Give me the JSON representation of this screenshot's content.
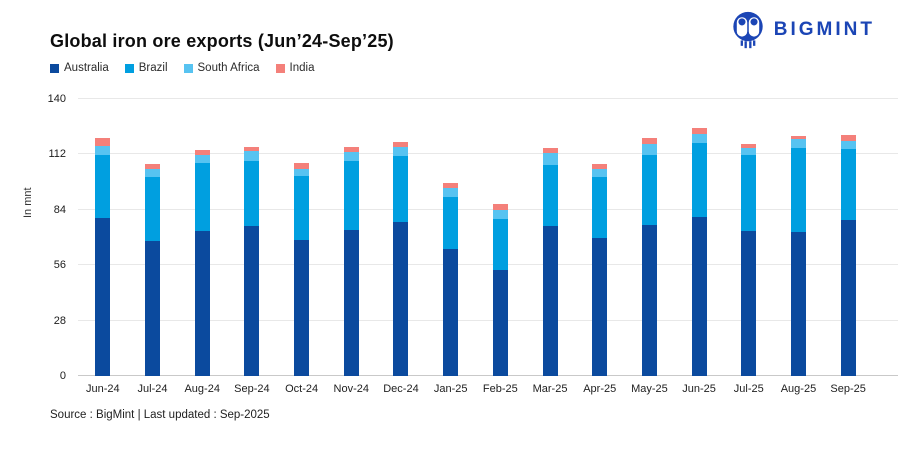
{
  "logo": {
    "text": "BIGMINT",
    "color": "#1b45b5"
  },
  "chart_data": {
    "type": "bar",
    "stacked": true,
    "title": "Global iron ore exports (Jun’24-Sep’25)",
    "ylabel": "In mnt",
    "ylim": [
      0,
      140
    ],
    "yticks": [
      0,
      28,
      56,
      84,
      112,
      140
    ],
    "grid": "horizontal",
    "legend_position": "top-left",
    "categories": [
      "Jun-24",
      "Jul-24",
      "Aug-24",
      "Sep-24",
      "Oct-24",
      "Nov-24",
      "Dec-24",
      "Jan-25",
      "Feb-25",
      "Mar-25",
      "Apr-25",
      "May-25",
      "Jun-25",
      "Jul-25",
      "Aug-25",
      "Sep-25"
    ],
    "series": [
      {
        "name": "Australia",
        "color": "#0b4a9e",
        "values": [
          80,
          68,
          73.5,
          76,
          68.5,
          74,
          78,
          64,
          53.5,
          76,
          70,
          76.5,
          80.5,
          73.5,
          73,
          79
        ]
      },
      {
        "name": "Brazil",
        "color": "#009fe0",
        "values": [
          31.5,
          32.5,
          34,
          32.5,
          32.5,
          34.5,
          33,
          26.5,
          26,
          30.5,
          30.5,
          35,
          37.5,
          38,
          42,
          35.5
        ]
      },
      {
        "name": "South Africa",
        "color": "#57c3f1",
        "values": [
          5,
          4,
          4,
          5,
          3.5,
          4.5,
          5,
          4.5,
          4.5,
          6,
          4,
          6,
          4.5,
          4,
          5,
          4.5
        ]
      },
      {
        "name": "India",
        "color": "#f4807a",
        "values": [
          4,
          2.5,
          2.5,
          2.5,
          3,
          3,
          2.5,
          2.5,
          3,
          3,
          2.5,
          3,
          3,
          2,
          1.5,
          3
        ]
      }
    ],
    "totals": [
      120.5,
      107,
      114,
      116,
      107.5,
      116,
      118.5,
      97.5,
      87,
      115.5,
      107,
      120.5,
      125.5,
      117.5,
      121.5,
      122
    ],
    "source_note": "Source : BigMint | Last updated : Sep-2025"
  }
}
